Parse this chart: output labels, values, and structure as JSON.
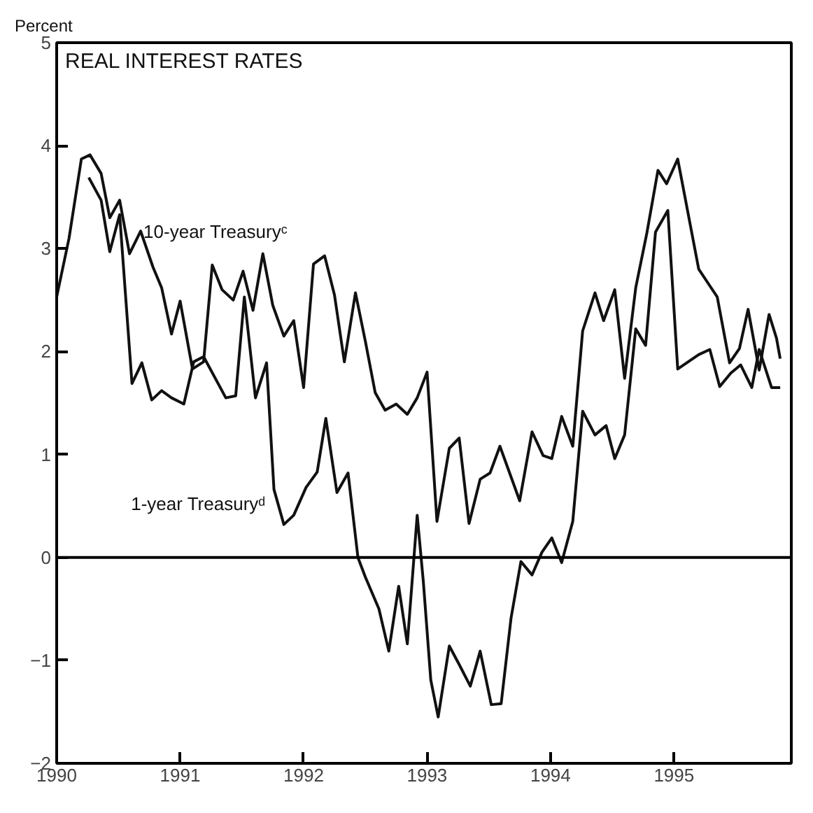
{
  "chart_data": {
    "type": "line",
    "title": "REAL INTEREST RATES",
    "ylabel": "Percent",
    "xlim": [
      1990,
      1995.95
    ],
    "ylim": [
      -2,
      5
    ],
    "xticks": [
      1990,
      1991,
      1992,
      1993,
      1994,
      1995
    ],
    "yticks": [
      -2,
      -1,
      0,
      1,
      2,
      3,
      4,
      5
    ],
    "grid": false,
    "marker": "none",
    "line_style": "solid",
    "ref_lines": [
      {
        "axis": "y",
        "value": 0,
        "color": "#000000"
      }
    ],
    "series": [
      {
        "name": "10-year Treasuryᶜ",
        "color": "#111111",
        "x": [
          1990.0,
          1990.1,
          1990.2,
          1990.27,
          1990.36,
          1990.43,
          1990.51,
          1990.59,
          1990.68,
          1990.78,
          1990.85,
          1990.93,
          1991.0,
          1991.1,
          1991.19,
          1991.26,
          1991.34,
          1991.43,
          1991.51,
          1991.59,
          1991.67,
          1991.75,
          1991.84,
          1991.92,
          1992.0,
          1992.08,
          1992.17,
          1992.25,
          1992.33,
          1992.42,
          1992.5,
          1992.58,
          1992.66,
          1992.75,
          1992.84,
          1992.92,
          1993.0,
          1993.08,
          1993.18,
          1993.26,
          1993.34,
          1993.43,
          1993.51,
          1993.59,
          1993.75,
          1993.85,
          1993.94,
          1994.01,
          1994.09,
          1994.18,
          1994.26,
          1994.36,
          1994.43,
          1994.52,
          1994.6,
          1994.69,
          1994.78,
          1994.87,
          1994.94,
          1995.03,
          1995.2,
          1995.35,
          1995.45,
          1995.53,
          1995.6,
          1995.69,
          1995.77,
          1995.83,
          1995.86
        ],
        "values": [
          2.53,
          3.1,
          3.87,
          3.91,
          3.73,
          3.3,
          3.47,
          2.95,
          3.17,
          2.82,
          2.62,
          2.17,
          2.49,
          1.83,
          1.9,
          2.84,
          2.6,
          2.5,
          2.78,
          2.4,
          2.95,
          2.45,
          2.15,
          2.3,
          1.65,
          2.85,
          2.93,
          2.55,
          1.9,
          2.57,
          2.1,
          1.6,
          1.43,
          1.49,
          1.39,
          1.55,
          1.8,
          0.35,
          1.06,
          1.16,
          0.33,
          0.76,
          0.82,
          1.08,
          0.55,
          1.22,
          0.99,
          0.96,
          1.37,
          1.08,
          2.2,
          2.57,
          2.3,
          2.6,
          1.74,
          2.62,
          3.15,
          3.76,
          3.63,
          3.87,
          2.8,
          2.53,
          1.89,
          2.03,
          2.41,
          1.82,
          2.36,
          2.13,
          1.93
        ]
      },
      {
        "name": "1-year Treasuryᵈ",
        "color": "#111111",
        "x": [
          1990.26,
          1990.36,
          1990.43,
          1990.51,
          1990.61,
          1990.69,
          1990.77,
          1990.85,
          1990.93,
          1991.03,
          1991.11,
          1991.19,
          1991.37,
          1991.45,
          1991.52,
          1991.61,
          1991.7,
          1991.76,
          1991.84,
          1991.92,
          1992.02,
          1992.11,
          1992.18,
          1992.27,
          1992.36,
          1992.44,
          1992.5,
          1992.61,
          1992.69,
          1992.77,
          1992.84,
          1992.92,
          1992.97,
          1993.03,
          1993.09,
          1993.18,
          1993.26,
          1993.35,
          1993.43,
          1993.52,
          1993.6,
          1993.68,
          1993.76,
          1993.85,
          1993.93,
          1994.01,
          1994.09,
          1994.18,
          1994.26,
          1994.36,
          1994.45,
          1994.52,
          1994.6,
          1994.69,
          1994.77,
          1994.85,
          1994.95,
          1995.03,
          1995.2,
          1995.29,
          1995.37,
          1995.46,
          1995.54,
          1995.63,
          1995.69,
          1995.79,
          1995.86
        ],
        "values": [
          3.69,
          3.47,
          2.97,
          3.33,
          1.69,
          1.89,
          1.53,
          1.62,
          1.55,
          1.49,
          1.9,
          1.95,
          1.55,
          1.57,
          2.53,
          1.55,
          1.89,
          0.66,
          0.32,
          0.41,
          0.68,
          0.83,
          1.35,
          0.63,
          0.82,
          0.0,
          -0.19,
          -0.5,
          -0.91,
          -0.28,
          -0.84,
          0.41,
          -0.24,
          -1.19,
          -1.55,
          -0.86,
          -1.04,
          -1.25,
          -0.91,
          -1.43,
          -1.42,
          -0.59,
          -0.04,
          -0.17,
          0.05,
          0.19,
          -0.05,
          0.35,
          1.42,
          1.19,
          1.28,
          0.96,
          1.19,
          2.22,
          2.06,
          3.16,
          3.37,
          1.83,
          1.97,
          2.02,
          1.66,
          1.79,
          1.87,
          1.65,
          2.02,
          1.65,
          1.65
        ]
      }
    ]
  }
}
